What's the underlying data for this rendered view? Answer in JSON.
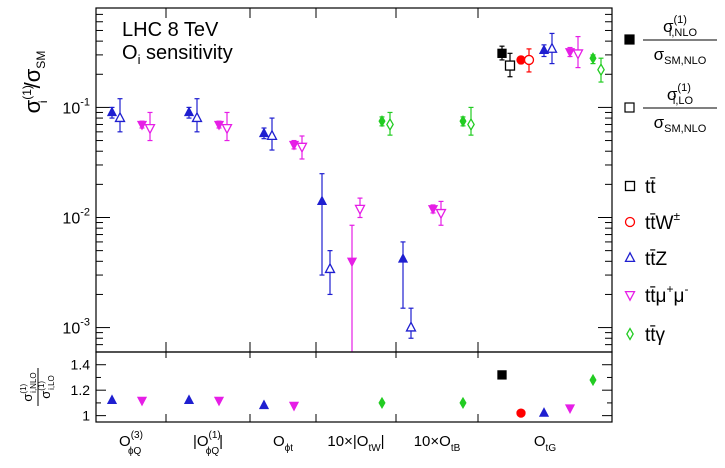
{
  "chart_data": {
    "type": "scatter",
    "annotation_line1": "LHC 8 TeV",
    "annotation_line2_main": "O",
    "annotation_line2_sub": "i",
    "annotation_line2_rest": " sensitivity",
    "ylabel_main": {
      "sigma": "σ",
      "sub": "i",
      "sup": "(1)",
      "slash": "/",
      "sigma2": "σ",
      "sub2": "SM"
    },
    "ratio_ylabel": {
      "num": "σ",
      "num_sub": "i,NLO",
      "num_sup": "(1)",
      "den": "σ",
      "den_sub": "i,LO",
      "den_sup": "(1)"
    },
    "yscale": "log",
    "ylim": [
      0.0006,
      0.8
    ],
    "y_ticks": [
      {
        "value": 0.1,
        "base": "10",
        "exp": "-1"
      },
      {
        "value": 0.01,
        "base": "10",
        "exp": "-2"
      },
      {
        "value": 0.001,
        "base": "10",
        "exp": "-3"
      }
    ],
    "ratio_ylim": [
      0.95,
      1.5
    ],
    "ratio_ticks": [
      "1",
      "1.2",
      "1.4"
    ],
    "categories": [
      {
        "main": "O",
        "sub": "ϕQ",
        "sup": "(3)",
        "prefix": "",
        "bars": ""
      },
      {
        "main": "O",
        "sub": "ϕQ",
        "sup": "(1)",
        "prefix": "",
        "bars": "abs"
      },
      {
        "main": "O",
        "sub": "ϕt",
        "sup": "",
        "prefix": "",
        "bars": ""
      },
      {
        "main": "O",
        "sub": "tW",
        "sup": "",
        "prefix": "10×",
        "bars": "abs"
      },
      {
        "main": "O",
        "sub": "tB",
        "sup": "",
        "prefix": "10×",
        "bars": ""
      },
      {
        "main": "O",
        "sub": "tG",
        "sup": "",
        "prefix": "",
        "bars": ""
      }
    ],
    "series": [
      {
        "name_main": "tt̄",
        "name_sup": "",
        "color": "#000000",
        "marker": "square",
        "nlo": [
          null,
          null,
          null,
          null,
          null,
          [
            0.31,
            0.27,
            0.36
          ]
        ],
        "lo": [
          null,
          null,
          null,
          null,
          null,
          [
            0.24,
            0.19,
            0.31
          ]
        ],
        "ratio": [
          null,
          null,
          null,
          null,
          null,
          1.32
        ]
      },
      {
        "name_main": "tt̄W",
        "name_sup": "±",
        "color": "#ff0000",
        "marker": "circle",
        "nlo": [
          null,
          null,
          null,
          null,
          null,
          [
            0.27,
            0.25,
            0.29
          ]
        ],
        "lo": [
          null,
          null,
          null,
          null,
          null,
          [
            0.27,
            0.21,
            0.34
          ]
        ],
        "ratio": [
          null,
          null,
          null,
          null,
          null,
          1.02
        ]
      },
      {
        "name_main": "tt̄Z",
        "name_sup": "",
        "color": "#1f1fd0",
        "marker": "triangle-up",
        "nlo": [
          [
            0.09,
            0.08,
            0.1
          ],
          [
            0.09,
            0.08,
            0.1
          ],
          [
            0.058,
            0.052,
            0.065
          ],
          [
            0.014,
            0.003,
            0.025
          ],
          [
            0.0042,
            0.0015,
            0.006
          ],
          [
            0.33,
            0.29,
            0.37
          ]
        ],
        "lo": [
          [
            0.08,
            0.06,
            0.12
          ],
          [
            0.08,
            0.06,
            0.12
          ],
          [
            0.055,
            0.041,
            0.08
          ],
          [
            0.0034,
            0.002,
            0.005
          ],
          [
            0.001,
            0.0008,
            0.0015
          ],
          [
            0.34,
            0.25,
            0.47
          ]
        ],
        "ratio": [
          1.12,
          1.12,
          1.08,
          null,
          null,
          1.02
        ]
      },
      {
        "name_main": "tt̄μ",
        "name_sup": "+",
        "name_main2": "μ",
        "name_sup2": "-",
        "color": "#e61ee6",
        "marker": "triangle-down",
        "nlo": [
          [
            0.07,
            0.065,
            0.075
          ],
          [
            0.07,
            0.065,
            0.075
          ],
          [
            0.046,
            0.042,
            0.05
          ],
          [
            0.004,
            0.0001,
            0.0085
          ],
          [
            0.012,
            0.011,
            0.013
          ],
          [
            0.32,
            0.29,
            0.35
          ]
        ],
        "lo": [
          [
            0.065,
            0.05,
            0.09
          ],
          [
            0.065,
            0.05,
            0.09
          ],
          [
            0.044,
            0.034,
            0.055
          ],
          [
            0.012,
            0.01,
            0.015
          ],
          [
            0.011,
            0.0085,
            0.014
          ],
          [
            0.31,
            0.23,
            0.44
          ]
        ],
        "ratio": [
          1.12,
          1.12,
          1.08,
          null,
          null,
          1.06
        ]
      },
      {
        "name_main": "tt̄γ",
        "name_sup": "",
        "color": "#22cc22",
        "marker": "diamond",
        "nlo": [
          null,
          null,
          null,
          [
            0.075,
            0.068,
            0.082
          ],
          [
            0.075,
            0.068,
            0.082
          ],
          [
            0.28,
            0.25,
            0.3
          ]
        ],
        "lo": [
          null,
          null,
          null,
          [
            0.07,
            0.056,
            0.09
          ],
          [
            0.07,
            0.056,
            0.1
          ],
          [
            0.22,
            0.17,
            0.28
          ]
        ],
        "ratio": [
          null,
          null,
          null,
          1.1,
          1.1,
          1.28
        ]
      }
    ],
    "legend_style": [
      {
        "style": "filled",
        "num": "σ",
        "num_sub": "i,NLO",
        "num_sup": "(1)",
        "den": "σ",
        "den_sub": "SM,NLO"
      },
      {
        "style": "open",
        "num": "σ",
        "num_sub": "i,LO",
        "num_sup": "(1)",
        "den": "σ",
        "den_sub": "SM,NLO"
      }
    ],
    "legend_placement": "right"
  }
}
